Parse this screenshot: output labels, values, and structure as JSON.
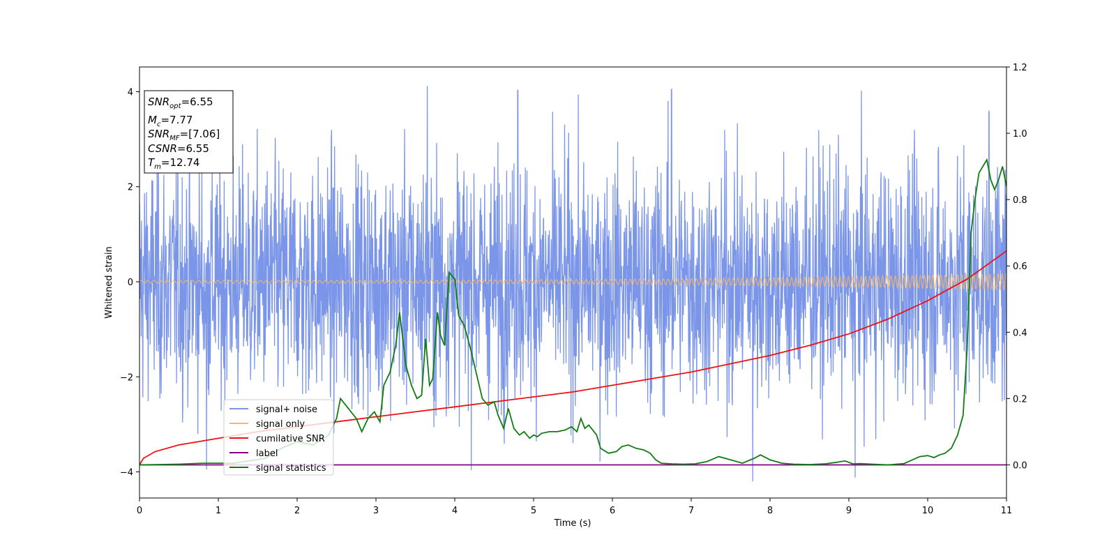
{
  "chart_data": {
    "type": "line",
    "xlabel": "Time (s)",
    "ylabel": "Whitened strain",
    "xlim": [
      0,
      11
    ],
    "ylim_left": [
      -4.55,
      4.52
    ],
    "ylim_right": [
      -0.1,
      1.2
    ],
    "x_ticks": [
      0,
      1,
      2,
      3,
      4,
      5,
      6,
      7,
      8,
      9,
      10,
      11
    ],
    "y_left_ticks": [
      -4,
      -2,
      0,
      2,
      4
    ],
    "y_right_ticks": [
      "0.0",
      "0.2",
      "0.4",
      "0.6",
      "0.8",
      "1.0",
      "1.2"
    ],
    "grid": false,
    "legend_position": "lower-left",
    "stats_box": {
      "snr_opt": {
        "symbol": "SNR",
        "sub": "opt",
        "value": "=6.55"
      },
      "mc": {
        "symbol": "M",
        "sub": "c",
        "value": "=7.77"
      },
      "snr_mf": {
        "symbol": "SNR",
        "sub": "MF",
        "value": "=[7.06]"
      },
      "csnr": {
        "symbol": "CSNR",
        "sub": "",
        "value": "=6.55"
      },
      "tm": {
        "symbol": "T",
        "sub": "m",
        "value": "=12.74"
      }
    },
    "series": [
      {
        "name": "signal+ noise",
        "color": "#7b96e8",
        "axis": "left",
        "style": "dense noise trace",
        "typical_range": [
          -2.0,
          2.0
        ],
        "extreme_peaks": [
          [
            0.85,
            -3.95
          ],
          [
            3.65,
            4.12
          ],
          [
            4.8,
            4.03
          ],
          [
            6.75,
            4.05
          ],
          [
            7.78,
            -4.2
          ],
          [
            9.08,
            -4.12
          ],
          [
            10.78,
            3.6
          ]
        ]
      },
      {
        "name": "signal only",
        "color": "#f5b86b",
        "axis": "left",
        "style": "chirp oscillation",
        "amplitude_start": 0.03,
        "amplitude_end": 0.18
      },
      {
        "name": "cumilative SNR",
        "color": "#ee1111",
        "axis": "right",
        "x": [
          0,
          0.05,
          0.2,
          0.5,
          1,
          1.5,
          2,
          2.5,
          3,
          3.5,
          4,
          4.5,
          5,
          5.5,
          6,
          6.5,
          7,
          7.5,
          8,
          8.5,
          9,
          9.5,
          10,
          10.5,
          11
        ],
        "y": [
          0.0,
          0.02,
          0.04,
          0.06,
          0.08,
          0.1,
          0.115,
          0.13,
          0.145,
          0.16,
          0.175,
          0.19,
          0.205,
          0.22,
          0.24,
          0.26,
          0.28,
          0.305,
          0.33,
          0.36,
          0.395,
          0.44,
          0.495,
          0.56,
          0.645
        ]
      },
      {
        "name": "label",
        "color": "#800080",
        "axis": "right",
        "x": [
          0,
          11
        ],
        "y": [
          0,
          0
        ]
      },
      {
        "name": "signal statistics",
        "color": "#107c10",
        "axis": "right",
        "x": [
          0,
          0.5,
          0.8,
          1.2,
          1.6,
          1.8,
          2.0,
          2.2,
          2.4,
          2.5,
          2.55,
          2.65,
          2.75,
          2.82,
          2.9,
          2.98,
          3.05,
          3.1,
          3.18,
          3.25,
          3.3,
          3.38,
          3.45,
          3.52,
          3.58,
          3.63,
          3.68,
          3.72,
          3.78,
          3.82,
          3.87,
          3.93,
          4.0,
          4.05,
          4.12,
          4.2,
          4.28,
          4.35,
          4.42,
          4.5,
          4.55,
          4.62,
          4.68,
          4.75,
          4.82,
          4.88,
          4.95,
          5.0,
          5.05,
          5.1,
          5.2,
          5.3,
          5.4,
          5.48,
          5.55,
          5.6,
          5.65,
          5.7,
          5.8,
          5.85,
          5.95,
          6.05,
          6.12,
          6.2,
          6.3,
          6.4,
          6.48,
          6.55,
          6.62,
          6.75,
          6.9,
          7.05,
          7.2,
          7.35,
          7.5,
          7.65,
          7.8,
          7.88,
          8.0,
          8.15,
          8.3,
          8.5,
          8.7,
          8.85,
          8.95,
          9.05,
          9.15,
          9.3,
          9.5,
          9.7,
          9.9,
          10.0,
          10.08,
          10.15,
          10.22,
          10.3,
          10.38,
          10.45,
          10.5,
          10.55,
          10.6,
          10.65,
          10.7,
          10.75,
          10.8,
          10.85,
          10.9,
          10.95,
          11.0
        ],
        "y": [
          0.0,
          0.002,
          0.005,
          0.005,
          0.02,
          0.05,
          0.07,
          0.06,
          0.09,
          0.14,
          0.2,
          0.17,
          0.14,
          0.1,
          0.14,
          0.16,
          0.13,
          0.24,
          0.28,
          0.36,
          0.46,
          0.3,
          0.24,
          0.2,
          0.21,
          0.38,
          0.24,
          0.26,
          0.46,
          0.39,
          0.36,
          0.58,
          0.56,
          0.45,
          0.42,
          0.35,
          0.27,
          0.2,
          0.18,
          0.19,
          0.15,
          0.11,
          0.17,
          0.11,
          0.09,
          0.1,
          0.08,
          0.09,
          0.085,
          0.095,
          0.1,
          0.1,
          0.105,
          0.115,
          0.1,
          0.14,
          0.11,
          0.12,
          0.09,
          0.05,
          0.035,
          0.04,
          0.055,
          0.06,
          0.05,
          0.045,
          0.035,
          0.015,
          0.005,
          0.003,
          0.002,
          0.003,
          0.01,
          0.025,
          0.015,
          0.005,
          0.02,
          0.03,
          0.015,
          0.005,
          0.002,
          0.001,
          0.003,
          0.008,
          0.012,
          0.003,
          0.004,
          0.002,
          0.0,
          0.004,
          0.025,
          0.028,
          0.022,
          0.03,
          0.035,
          0.05,
          0.09,
          0.15,
          0.35,
          0.7,
          0.8,
          0.88,
          0.9,
          0.92,
          0.86,
          0.83,
          0.86,
          0.9,
          0.84
        ]
      }
    ]
  }
}
